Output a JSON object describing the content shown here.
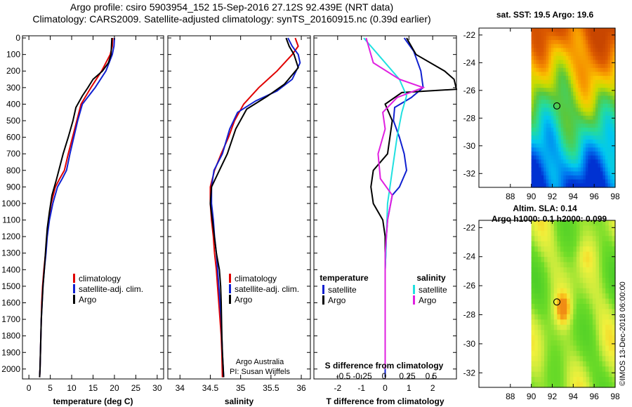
{
  "header": {
    "line1": "Argo profile: csiro 5903954_152 15-Sep-2016 27.12S 92.439E (NRT data)",
    "line2": "Climatology: CARS2009. Satellite-adjusted climatology: synTS_20160915.nc (0.39d earlier)"
  },
  "colors": {
    "climatology": "#e00000",
    "satellite": "#1020d0",
    "argo": "#000000",
    "sat_salinity": "#20e0e0",
    "argo_salinity": "#e020e0"
  },
  "credit": {
    "line1": "Argo Australia",
    "line2": "PI: Susan Wijffels"
  },
  "imos_stamp": "©IMOS 13-Dec-2018 06:00:00",
  "chart_data": [
    {
      "id": "temperature",
      "type": "line",
      "xlabel": "temperature (deg C)",
      "ylabel": "",
      "xlim": [
        -1.5,
        31.5
      ],
      "ylim": [
        2060,
        0
      ],
      "xticks": [
        0,
        5,
        10,
        15,
        20,
        25,
        30
      ],
      "yticks": [
        0,
        100,
        200,
        300,
        400,
        500,
        600,
        700,
        800,
        900,
        1000,
        1100,
        1200,
        1300,
        1400,
        1500,
        1600,
        1700,
        1800,
        1900,
        2000
      ],
      "legend": [
        "climatology",
        "satellite-adj. clim.",
        "Argo"
      ],
      "series": [
        {
          "name": "climatology",
          "color": "#e00000",
          "x": [
            19.6,
            19.5,
            19.0,
            17.0,
            14.5,
            12.2,
            11.2,
            10.2,
            9.2,
            8.3,
            7.2,
            6.2,
            5.2,
            4.6,
            4.2,
            3.9,
            3.5,
            3.2,
            3.0,
            2.9,
            2.8,
            2.7,
            2.6,
            2.5
          ],
          "y": [
            0,
            50,
            100,
            200,
            300,
            400,
            500,
            600,
            700,
            800,
            850,
            900,
            1000,
            1100,
            1200,
            1300,
            1400,
            1500,
            1600,
            1700,
            1800,
            1900,
            2000,
            2050
          ]
        },
        {
          "name": "satellite-adj. clim.",
          "color": "#1020d0",
          "x": [
            20.0,
            19.9,
            19.5,
            18.0,
            15.5,
            12.5,
            11.4,
            10.5,
            9.6,
            8.8,
            7.8,
            6.7,
            5.6,
            4.8,
            4.3,
            4.0,
            3.6,
            3.3,
            3.1,
            2.9,
            2.8,
            2.7,
            2.6,
            2.5
          ],
          "y": [
            0,
            50,
            100,
            200,
            300,
            400,
            500,
            600,
            700,
            800,
            850,
            900,
            1000,
            1100,
            1200,
            1300,
            1400,
            1500,
            1600,
            1700,
            1800,
            1900,
            2000,
            2050
          ]
        },
        {
          "name": "Argo",
          "color": "#000000",
          "x": [
            19.4,
            19.3,
            19.2,
            18.6,
            17.2,
            15.0,
            13.8,
            12.5,
            11.0,
            10.3,
            9.2,
            8.0,
            7.0,
            6.4,
            5.4,
            4.8,
            4.3,
            4.0,
            3.6,
            3.3,
            3.1,
            2.9,
            2.8,
            2.7,
            2.6,
            2.5
          ],
          "y": [
            0,
            50,
            100,
            150,
            200,
            250,
            300,
            350,
            420,
            500,
            600,
            700,
            800,
            860,
            950,
            1050,
            1150,
            1250,
            1400,
            1500,
            1600,
            1700,
            1800,
            1900,
            2000,
            2050
          ]
        }
      ]
    },
    {
      "id": "salinity",
      "type": "line",
      "xlabel": "salinity",
      "ylabel": "",
      "xlim": [
        33.8,
        36.15
      ],
      "ylim": [
        2060,
        0
      ],
      "xticks": [
        34,
        34.5,
        35,
        35.5,
        36
      ],
      "legend": [
        "climatology",
        "satellite-adj. clim.",
        "Argo"
      ],
      "series": [
        {
          "name": "climatology",
          "color": "#e00000",
          "x": [
            35.9,
            35.95,
            35.85,
            35.6,
            35.3,
            35.05,
            34.9,
            34.8,
            34.68,
            34.57,
            34.5,
            34.5,
            34.52,
            34.55,
            34.57,
            34.6,
            34.62,
            34.64,
            34.66,
            34.68,
            34.69,
            34.7
          ],
          "y": [
            0,
            50,
            100,
            200,
            300,
            400,
            500,
            600,
            700,
            800,
            900,
            1000,
            1100,
            1200,
            1300,
            1400,
            1500,
            1600,
            1700,
            1800,
            1900,
            2050
          ]
        },
        {
          "name": "satellite-adj. clim.",
          "color": "#1020d0",
          "x": [
            35.78,
            35.85,
            35.95,
            35.98,
            35.85,
            35.6,
            35.25,
            34.95,
            34.82,
            34.7,
            34.56,
            34.52,
            34.52,
            34.55,
            34.57,
            34.6,
            34.62,
            34.64,
            34.66,
            34.68,
            34.7,
            34.72
          ],
          "y": [
            0,
            50,
            100,
            150,
            250,
            320,
            380,
            450,
            550,
            700,
            800,
            900,
            1000,
            1100,
            1200,
            1300,
            1400,
            1500,
            1600,
            1700,
            1900,
            2050
          ]
        },
        {
          "name": "Argo",
          "color": "#000000",
          "x": [
            35.75,
            35.8,
            35.88,
            35.95,
            35.72,
            35.45,
            35.1,
            34.92,
            34.78,
            34.65,
            34.52,
            34.5,
            34.55,
            34.6,
            34.65,
            34.67,
            34.68,
            34.69,
            34.7,
            34.72
          ],
          "y": [
            0,
            50,
            100,
            180,
            280,
            350,
            430,
            550,
            700,
            800,
            900,
            1000,
            1150,
            1300,
            1400,
            1500,
            1600,
            1800,
            1900,
            2050
          ]
        }
      ]
    },
    {
      "id": "differences",
      "type": "line",
      "xlabel": "T difference from climatology",
      "x2label": "S difference from climatology",
      "xlim": [
        -3,
        3
      ],
      "ylim": [
        2060,
        0
      ],
      "xticks": [
        -2,
        -1,
        0,
        1,
        2
      ],
      "x2ticks": [
        "-0.5",
        "-0.25",
        "0",
        "0.25",
        "0.5"
      ],
      "legend": {
        "temperature_title": "temperature",
        "salinity_title": "salinity",
        "entries": [
          "satellite",
          "Argo",
          "satellite",
          "Argo"
        ]
      },
      "series": [
        {
          "name": "temperature satellite",
          "color": "#1020d0",
          "x": [
            0.8,
            1.2,
            1.5,
            1.6,
            1.1,
            0.4,
            0.35,
            0.6,
            0.8,
            0.9,
            0.6,
            0.3,
            0.1,
            0.05,
            0.0,
            0.0,
            0.0,
            0.0,
            0.0
          ],
          "y": [
            0,
            80,
            200,
            300,
            360,
            420,
            500,
            600,
            700,
            800,
            900,
            950,
            1100,
            1200,
            1400,
            1600,
            1800,
            2000,
            2050
          ]
        },
        {
          "name": "temperature Argo",
          "color": "#000000",
          "x": [
            0.9,
            1.3,
            2.5,
            2.9,
            3.0,
            0.7,
            0.0,
            0.3,
            0.1,
            -0.5,
            -0.6,
            -0.5,
            -0.1,
            0.0,
            0.0,
            0.0,
            0.0,
            0.0
          ],
          "y": [
            0,
            100,
            200,
            250,
            310,
            330,
            400,
            500,
            700,
            800,
            900,
            1000,
            1100,
            1200,
            1400,
            1600,
            1800,
            2000
          ]
        },
        {
          "name": "salinity satellite",
          "color": "#20e0e0",
          "x": [
            -0.9,
            -0.3,
            0.6,
            0.9,
            0.7,
            0.5,
            0.3,
            0.2,
            0.1,
            0.05,
            0.0,
            0.0,
            0.0,
            0.0
          ],
          "y": [
            0,
            100,
            250,
            350,
            450,
            600,
            800,
            900,
            1000,
            1200,
            1400,
            1600,
            1800,
            2000
          ]
        },
        {
          "name": "salinity Argo",
          "color": "#e020e0",
          "x": [
            -0.8,
            -0.5,
            0.6,
            1.6,
            0.5,
            -0.1,
            0.0,
            -0.3,
            -0.2,
            0.3,
            0.1,
            0.0,
            0.0,
            0.0
          ],
          "y": [
            0,
            150,
            250,
            300,
            360,
            450,
            550,
            700,
            850,
            950,
            1100,
            1300,
            1500,
            2000
          ]
        }
      ]
    },
    {
      "id": "sst_map",
      "type": "heatmap",
      "title": "sat. SST: 19.5 Argo: 19.6",
      "xlim": [
        85,
        98
      ],
      "ylim": [
        -33,
        -21.5
      ],
      "xticks": [
        88,
        90,
        92,
        94,
        96,
        98
      ],
      "yticks": [
        -22,
        -24,
        -26,
        -28,
        -30,
        -32
      ],
      "float_marker": {
        "lon": 92.44,
        "lat": -27.12
      }
    },
    {
      "id": "sla_map",
      "type": "heatmap",
      "title": "Altim. SLA: 0.14",
      "subtitle": "Argo h1000: 0.1 h2000: 0.099",
      "xlim": [
        85,
        98
      ],
      "ylim": [
        -33,
        -21.5
      ],
      "xticks": [
        88,
        90,
        92,
        94,
        96,
        98
      ],
      "yticks": [
        -22,
        -24,
        -26,
        -28,
        -30,
        -32
      ],
      "float_marker": {
        "lon": 92.44,
        "lat": -27.12
      }
    }
  ]
}
